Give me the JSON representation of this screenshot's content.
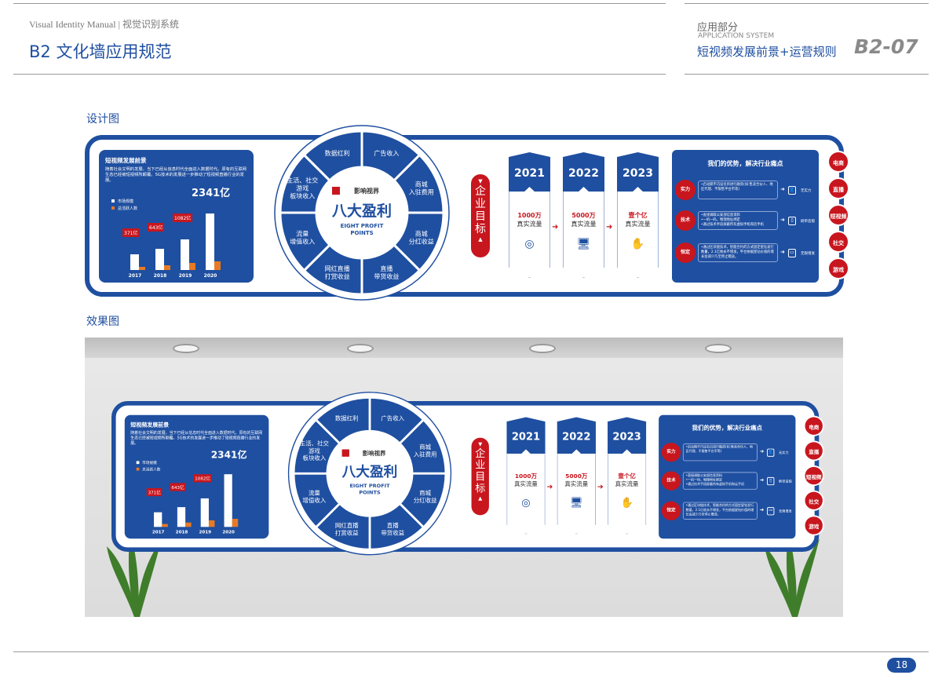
{
  "header": {
    "brand": "Visual Identity Manual | 视觉识别系统",
    "title": "B2 文化墙应用规范",
    "section": "应用部分",
    "section_en": "APPLICATION SYSTEM",
    "subtitle": "短视频发展前景+运营规则",
    "code": "B2-07"
  },
  "labels": {
    "design": "设计图",
    "effect": "效果图"
  },
  "page_number": "18",
  "wall": {
    "left": {
      "title": "短视频发展前景",
      "text": "随着社会文明的发展，当下已经从信息时代全面进入数据时代。原有的互联网生态已经被短视频所颠覆。5G技术的发展进一步推动了短视频直播行业的发展。",
      "legend": [
        "市场规模",
        "总活跃人数"
      ],
      "chart_data": {
        "type": "bar",
        "categories": [
          "2017",
          "2018",
          "2019",
          "2020"
        ],
        "series": [
          {
            "name": "市场规模",
            "values": [
              371,
              643,
              1082,
              2341
            ]
          }
        ],
        "value_labels": [
          "371亿",
          "643亿",
          "1082亿",
          "2341亿"
        ]
      }
    },
    "circle": {
      "logo": "影响视界",
      "title": "八大盈利",
      "subtitle_en": [
        "EIGHT PROFIT",
        "POINTS"
      ],
      "sectors": [
        [
          "广告收入"
        ],
        [
          "商城",
          "入驻费用"
        ],
        [
          "商城",
          "分红收益"
        ],
        [
          "直播",
          "带货收益"
        ],
        [
          "网红直播",
          "打赏收益"
        ],
        [
          "流量",
          "增值收入"
        ],
        [
          "生活、社交",
          "游戏",
          "板块收入"
        ],
        [
          "数据红利"
        ]
      ]
    },
    "goal": {
      "title": "企业目标",
      "chars": [
        "企",
        "业",
        "目",
        "标"
      ]
    },
    "years": [
      {
        "year": "2021",
        "value": "1000万",
        "label": "真实流量",
        "icon": "target-icon",
        "glyph": "◎"
      },
      {
        "year": "2022",
        "value": "5000万",
        "label": "真实流量",
        "icon": "computer-icon",
        "glyph": "🖥"
      },
      {
        "year": "2023",
        "value": "壹个亿",
        "label": "真实流量",
        "icon": "hand-icon",
        "glyph": "✋"
      }
    ],
    "right": {
      "title": "我们的优势，解决行业痛点",
      "rows": [
        {
          "tag": "实力",
          "lines": [
            "•启动期不巧设名目进行融资(如:售卖合伙人、地区代理、不限售平台币等)"
          ],
          "result": "无实力"
        },
        {
          "tag": "技术",
          "lines": [
            "•直接调取公安部信息资料",
            "•一机一码，物理地址绑定",
            "•通过技术手段屏蔽所有虚拟手机和云手机"
          ],
          "result": "刷单造假"
        },
        {
          "tag": "恒定",
          "lines": [
            "•通过区块链技术，智能合约的方式固定星钻发行数量，2.1亿枚永不增发，平台依据星钻价值的增长会减少乃至停止赠送。"
          ],
          "result": "无限增发"
        }
      ]
    },
    "side": [
      "电商",
      "直播",
      "短视频",
      "社交",
      "游戏"
    ]
  },
  "colors": {
    "blue": "#1f4fa0",
    "red": "#c8161e",
    "orange": "#e87a23"
  }
}
